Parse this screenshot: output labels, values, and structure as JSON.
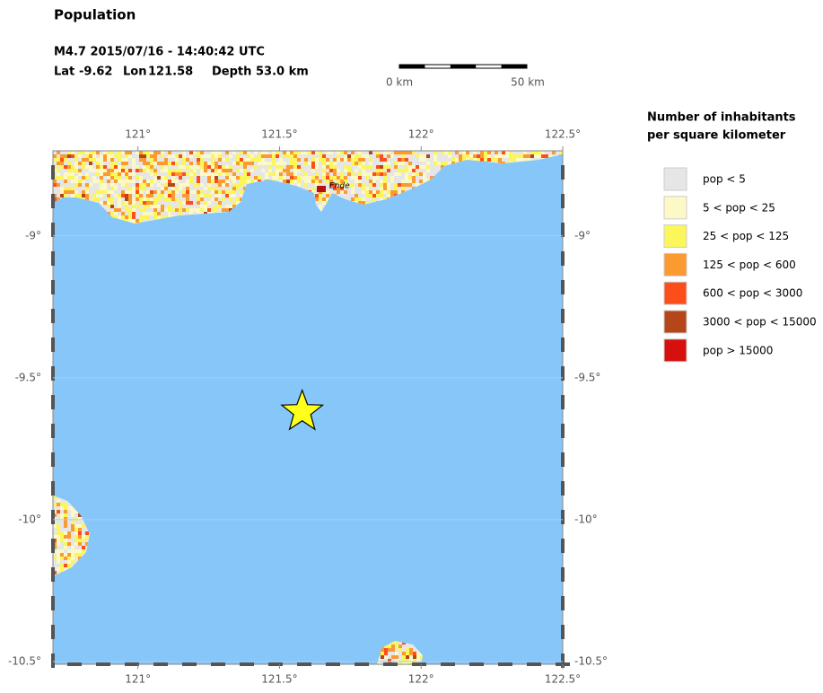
{
  "title": "Population",
  "event": {
    "line1": "M4.7  2015/07/16 - 14:40:42 UTC",
    "lat_label": "Lat",
    "lat": -9.62,
    "lon_label": "Lon",
    "lon": 121.58,
    "depth_label": "Depth",
    "depth": "53.0 km"
  },
  "scale_bar": {
    "start": "0 km",
    "end": "50 km"
  },
  "map": {
    "lon_range": [
      120.7,
      122.5
    ],
    "lat_range": [
      -10.51,
      -8.7
    ],
    "lon_ticks": [
      {
        "value": 121,
        "label": "121°"
      },
      {
        "value": 121.5,
        "label": "121.5°"
      },
      {
        "value": 122,
        "label": "122°"
      },
      {
        "value": 122.5,
        "label": "122.5°"
      }
    ],
    "lat_ticks": [
      {
        "value": -9,
        "label": "-9°"
      },
      {
        "value": -9.5,
        "label": "-9.5°"
      },
      {
        "value": -10,
        "label": "-10°"
      },
      {
        "value": -10.5,
        "label": "-10.5°"
      }
    ],
    "cities": [
      {
        "name": "Ende"
      }
    ]
  },
  "legend": {
    "title": [
      "Number of inhabitants",
      "per square kilometer"
    ],
    "items": [
      {
        "label": "pop < 5",
        "color": "#e6e6e6"
      },
      {
        "label": "5 < pop < 25",
        "color": "#fdf9c6"
      },
      {
        "label": "25 < pop < 125",
        "color": "#fbf65a"
      },
      {
        "label": "125 < pop < 600",
        "color": "#fb9a30"
      },
      {
        "label": "600 < pop < 3000",
        "color": "#fc4e1a"
      },
      {
        "label": "3000 < pop < 15000",
        "color": "#b4461a"
      },
      {
        "label": "pop > 15000",
        "color": "#d6100e"
      }
    ]
  }
}
